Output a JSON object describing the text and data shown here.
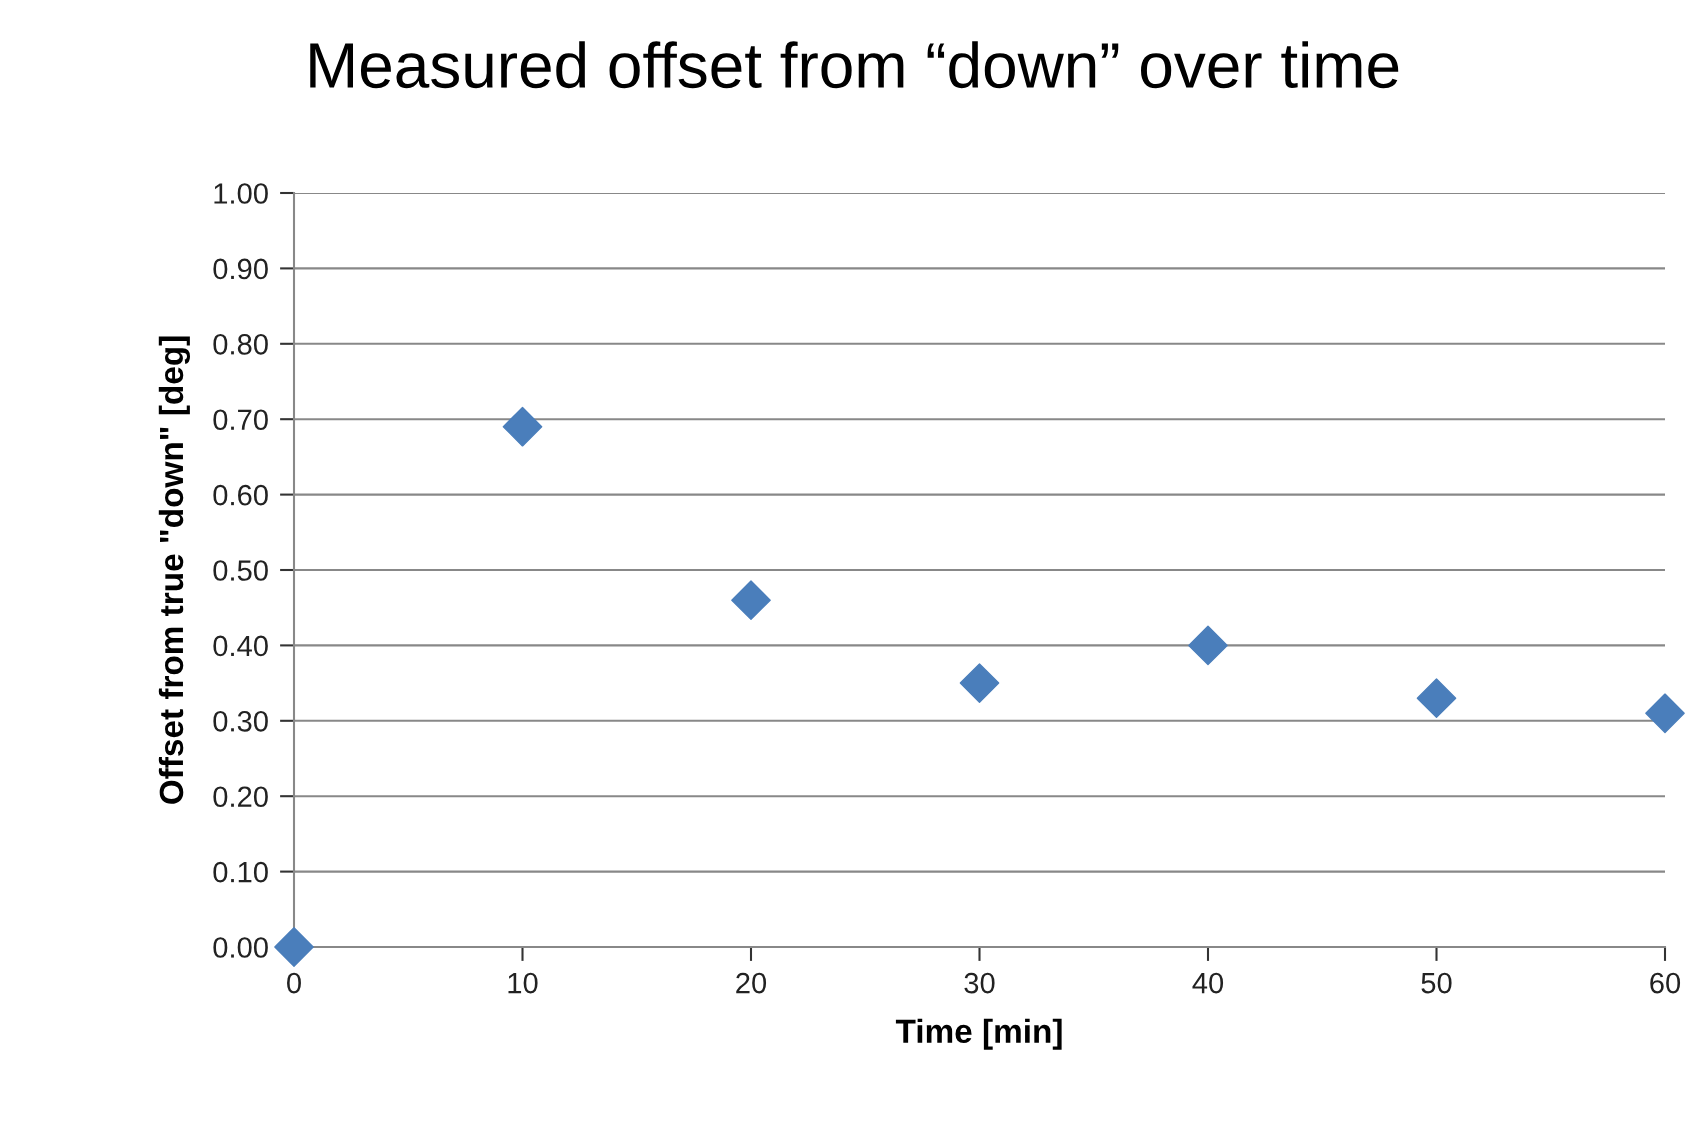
{
  "chart_data": {
    "type": "scatter",
    "title": "Measured offset from “down” over time",
    "xlabel": "Time [min]",
    "ylabel": "Offset from true \"down\" [deg]",
    "x": [
      0,
      10,
      20,
      30,
      40,
      50,
      60
    ],
    "series": [
      {
        "color": "#4a7ebb",
        "values": [
          0.0,
          0.69,
          0.46,
          0.35,
          0.4,
          0.33,
          0.31
        ]
      }
    ],
    "marker": "diamond",
    "xlim": [
      0,
      60
    ],
    "xticks": [
      0,
      10,
      20,
      30,
      40,
      50,
      60
    ],
    "ylim": [
      0,
      1
    ],
    "yticks": [
      {
        "value": 0,
        "label": "0.00"
      },
      {
        "value": 0.1,
        "label": "0.10"
      },
      {
        "value": 0.2,
        "label": "0.20"
      },
      {
        "value": 0.3,
        "label": "0.30"
      },
      {
        "value": 0.4,
        "label": "0.40"
      },
      {
        "value": 0.5,
        "label": "0.50"
      },
      {
        "value": 0.6,
        "label": "0.60"
      },
      {
        "value": 0.7,
        "label": "0.70"
      },
      {
        "value": 0.8,
        "label": "0.80"
      },
      {
        "value": 0.9,
        "label": "0.90"
      },
      {
        "value": 1,
        "label": "1.00"
      }
    ],
    "grid": "y",
    "legend": false
  }
}
